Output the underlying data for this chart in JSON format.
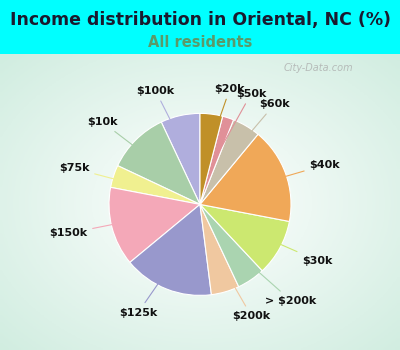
{
  "title": "Income distribution in Oriental, NC (%)",
  "subtitle": "All residents",
  "title_fontsize": 12.5,
  "subtitle_fontsize": 10.5,
  "title_color": "#1a1a2e",
  "subtitle_color": "#5a9a6a",
  "bg_color": "#00ffff",
  "watermark": "City-Data.com",
  "labels": [
    "$100k",
    "$10k",
    "$75k",
    "$150k",
    "$125k",
    "$200k",
    "> $200k",
    "$30k",
    "$40k",
    "$60k",
    "$50k",
    "$20k"
  ],
  "values": [
    7,
    11,
    4,
    14,
    16,
    5,
    5,
    10,
    17,
    5,
    2,
    4
  ],
  "colors": [
    "#b0aedd",
    "#a8cea8",
    "#f0f090",
    "#f4a8b8",
    "#9898cc",
    "#f0c8a0",
    "#aad4b0",
    "#cce870",
    "#f0a858",
    "#c8c0aa",
    "#e09098",
    "#c09028"
  ],
  "label_fontsize": 8,
  "startangle": 90,
  "r_inner": 0.52,
  "r_outer": 1.28
}
